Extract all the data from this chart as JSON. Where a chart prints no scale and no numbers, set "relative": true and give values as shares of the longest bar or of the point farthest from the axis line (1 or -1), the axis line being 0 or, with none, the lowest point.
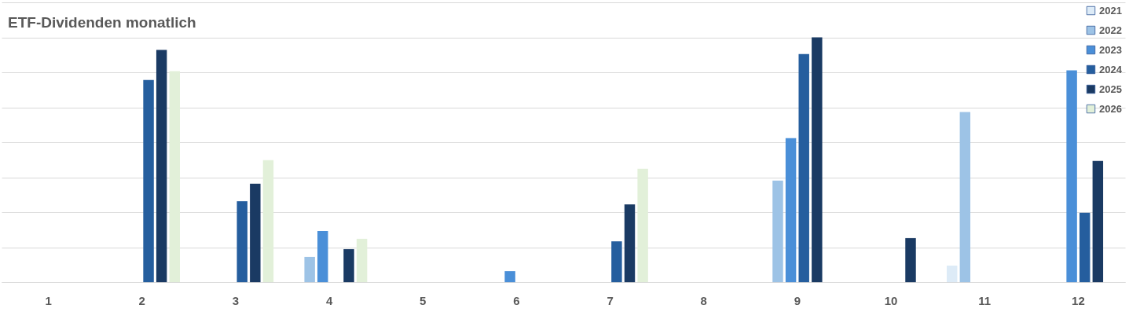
{
  "chart_data": {
    "type": "bar",
    "title": "ETF-Dividenden monatlich",
    "relative": true,
    "grid": "y",
    "legend": "top right",
    "categories": [
      "1",
      "2",
      "3",
      "4",
      "5",
      "6",
      "7",
      "8",
      "9",
      "10",
      "11",
      "12"
    ],
    "series": [
      {
        "name": "2021",
        "color": "#ddebf7",
        "values": [
          null,
          null,
          null,
          null,
          null,
          null,
          null,
          null,
          null,
          null,
          0.068,
          null
        ]
      },
      {
        "name": "2022",
        "color": "#9dc3e6",
        "values": [
          null,
          null,
          null,
          0.103,
          null,
          null,
          null,
          null,
          0.415,
          null,
          0.695,
          null
        ]
      },
      {
        "name": "2023",
        "color": "#4a8fd8",
        "values": [
          null,
          null,
          null,
          0.209,
          null,
          0.045,
          null,
          null,
          0.588,
          null,
          null,
          0.865
        ]
      },
      {
        "name": "2024",
        "color": "#255e9e",
        "values": [
          null,
          0.826,
          0.331,
          null,
          null,
          null,
          0.167,
          null,
          0.932,
          null,
          null,
          0.283
        ]
      },
      {
        "name": "2025",
        "color": "#1a3a63",
        "values": [
          null,
          0.949,
          0.402,
          0.135,
          null,
          null,
          0.318,
          null,
          1,
          0.18,
          null,
          0.495
        ]
      },
      {
        "name": "2026",
        "color": "#e2f0d9",
        "values": [
          null,
          0.862,
          0.498,
          0.177,
          null,
          null,
          0.463,
          null,
          null,
          null,
          null,
          null
        ]
      }
    ]
  }
}
